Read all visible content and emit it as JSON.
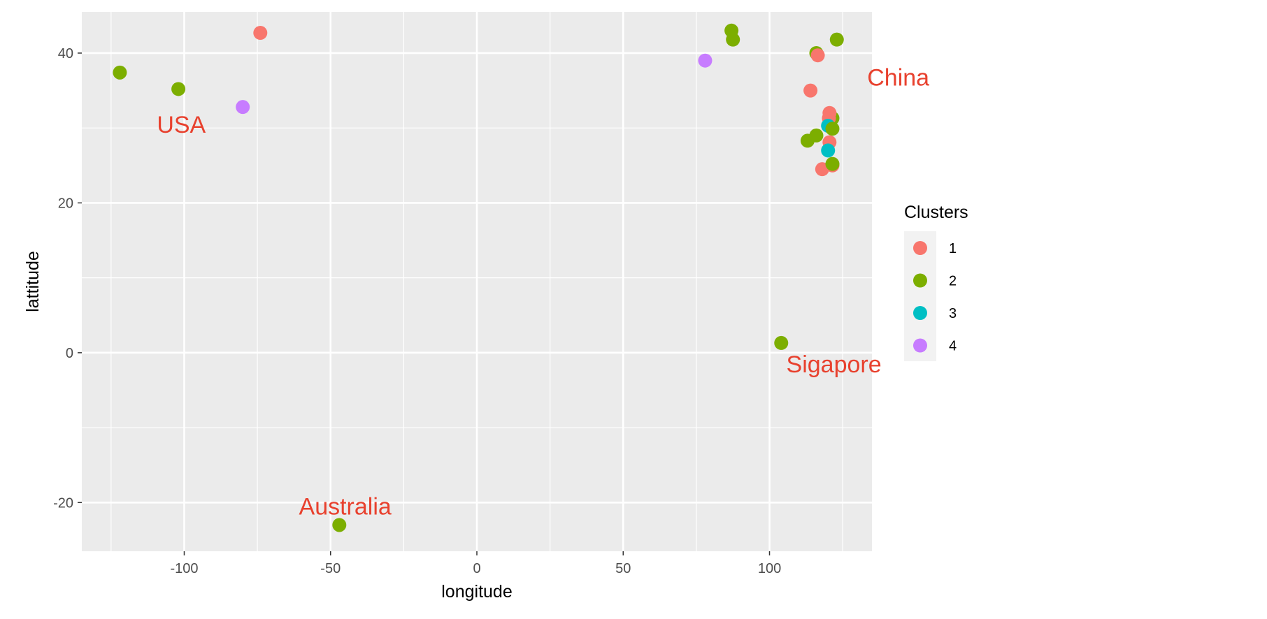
{
  "chart_data": {
    "type": "scatter",
    "title": "",
    "xlabel": "longitude",
    "ylabel": "lattitude",
    "xlim": [
      -135,
      135
    ],
    "ylim": [
      -26.5,
      45.5
    ],
    "x_ticks": [
      -100,
      -50,
      0,
      50,
      100
    ],
    "x_tick_labels": [
      "-100",
      "-50",
      "0",
      "50",
      "100"
    ],
    "y_ticks": [
      -20,
      0,
      20,
      40
    ],
    "y_tick_labels": [
      "-20",
      "0",
      "20",
      "40"
    ],
    "grid": true,
    "legend": {
      "title": "Clusters",
      "placement": "right",
      "entries": [
        {
          "label": "1",
          "color": "#F8766D"
        },
        {
          "label": "2",
          "color": "#7CAE00"
        },
        {
          "label": "3",
          "color": "#00BFC4"
        },
        {
          "label": "4",
          "color": "#C77CFF"
        }
      ]
    },
    "points": [
      {
        "x": -122.0,
        "y": 37.4,
        "cluster": "2"
      },
      {
        "x": -102.0,
        "y": 35.2,
        "cluster": "2"
      },
      {
        "x": -74.0,
        "y": 42.7,
        "cluster": "1"
      },
      {
        "x": -80.0,
        "y": 32.8,
        "cluster": "4"
      },
      {
        "x": -47.0,
        "y": -23.0,
        "cluster": "2"
      },
      {
        "x": 78.0,
        "y": 39.0,
        "cluster": "4"
      },
      {
        "x": 87.0,
        "y": 43.0,
        "cluster": "2"
      },
      {
        "x": 87.5,
        "y": 41.8,
        "cluster": "2"
      },
      {
        "x": 116.0,
        "y": 40.0,
        "cluster": "2"
      },
      {
        "x": 116.5,
        "y": 39.7,
        "cluster": "1"
      },
      {
        "x": 123.0,
        "y": 41.8,
        "cluster": "2"
      },
      {
        "x": 114.0,
        "y": 35.0,
        "cluster": "1"
      },
      {
        "x": 121.0,
        "y": 31.2,
        "cluster": "2"
      },
      {
        "x": 121.5,
        "y": 31.3,
        "cluster": "2"
      },
      {
        "x": 120.5,
        "y": 32.0,
        "cluster": "1"
      },
      {
        "x": 120.3,
        "y": 31.3,
        "cluster": "1"
      },
      {
        "x": 120.0,
        "y": 30.3,
        "cluster": "3"
      },
      {
        "x": 121.5,
        "y": 29.9,
        "cluster": "2"
      },
      {
        "x": 116.0,
        "y": 29.0,
        "cluster": "2"
      },
      {
        "x": 113.0,
        "y": 28.3,
        "cluster": "2"
      },
      {
        "x": 120.5,
        "y": 28.1,
        "cluster": "1"
      },
      {
        "x": 120.0,
        "y": 27.0,
        "cluster": "3"
      },
      {
        "x": 121.5,
        "y": 25.0,
        "cluster": "1"
      },
      {
        "x": 118.0,
        "y": 24.5,
        "cluster": "1"
      },
      {
        "x": 121.5,
        "y": 25.2,
        "cluster": "2"
      },
      {
        "x": 104.0,
        "y": 1.3,
        "cluster": "2"
      }
    ],
    "annotations": [
      {
        "text": "USA",
        "x": -101,
        "y": 30.5,
        "color": "#E8412E"
      },
      {
        "text": "China",
        "x": 144,
        "y": 36.8,
        "color": "#E8412E"
      },
      {
        "text": "Sigapore",
        "x": 122,
        "y": -1.5,
        "color": "#E8412E"
      },
      {
        "text": "Australia",
        "x": -45,
        "y": -20.5,
        "color": "#E8412E"
      }
    ]
  }
}
